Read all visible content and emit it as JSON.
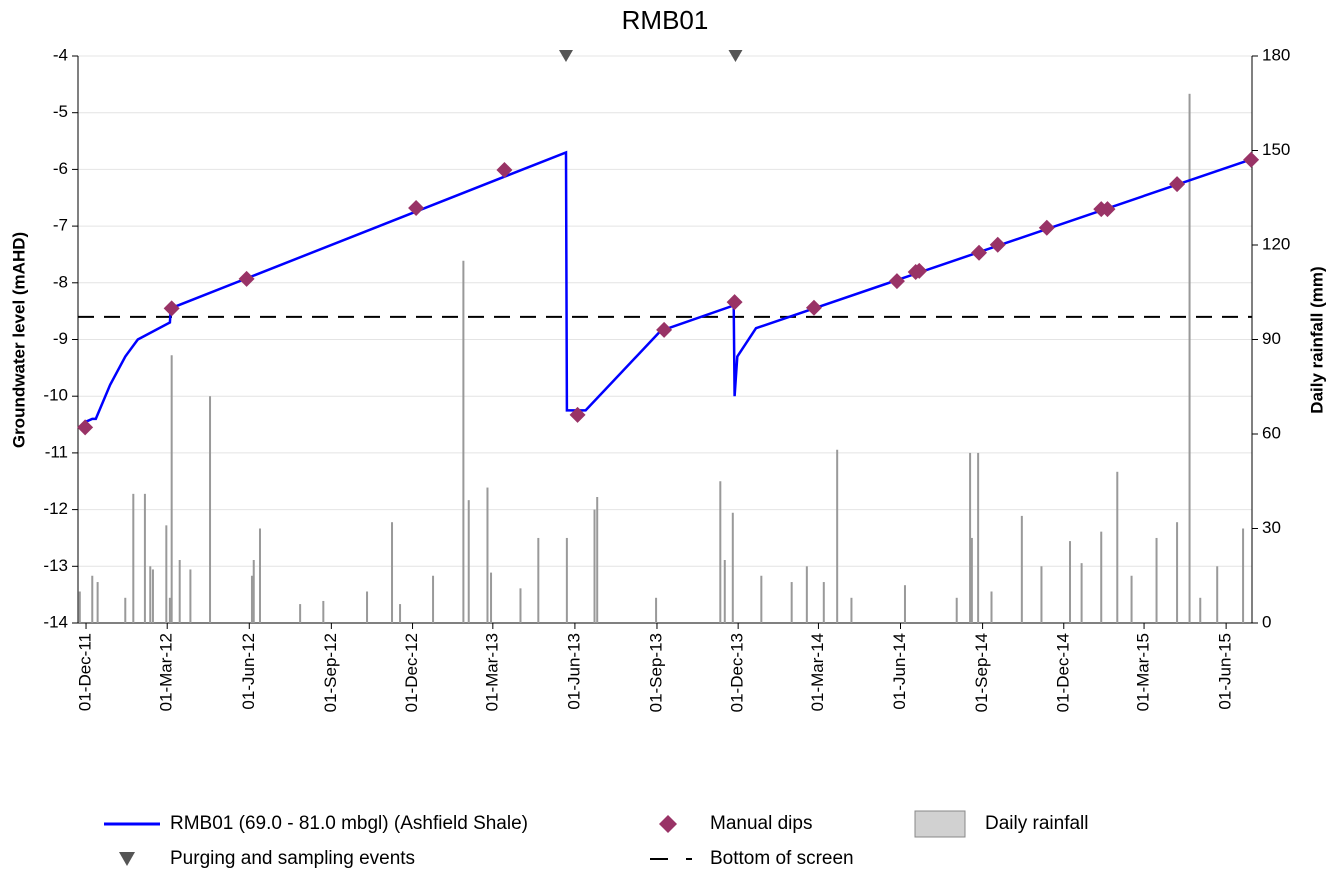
{
  "chart_data": {
    "type": "line",
    "title": "RMB01",
    "y_label": "Groundwater level (mAHD)",
    "y2_label": "Daily rainfall (mm)",
    "xlim": [
      "2011-11-22",
      "2015-06-30"
    ],
    "xticks": [
      {
        "value": "2011-12-01",
        "label": "01-Dec-11"
      },
      {
        "value": "2012-03-01",
        "label": "01-Mar-12"
      },
      {
        "value": "2012-06-01",
        "label": "01-Jun-12"
      },
      {
        "value": "2012-09-01",
        "label": "01-Sep-12"
      },
      {
        "value": "2012-12-01",
        "label": "01-Dec-12"
      },
      {
        "value": "2013-03-01",
        "label": "01-Mar-13"
      },
      {
        "value": "2013-06-01",
        "label": "01-Jun-13"
      },
      {
        "value": "2013-09-01",
        "label": "01-Sep-13"
      },
      {
        "value": "2013-12-01",
        "label": "01-Dec-13"
      },
      {
        "value": "2014-03-01",
        "label": "01-Mar-14"
      },
      {
        "value": "2014-06-01",
        "label": "01-Jun-14"
      },
      {
        "value": "2014-09-01",
        "label": "01-Sep-14"
      },
      {
        "value": "2014-12-01",
        "label": "01-Dec-14"
      },
      {
        "value": "2015-03-01",
        "label": "01-Mar-15"
      },
      {
        "value": "2015-06-01",
        "label": "01-Jun-15"
      }
    ],
    "ylim": [
      -14,
      -4
    ],
    "yticks": [
      -14,
      -13,
      -12,
      -11,
      -10,
      -9,
      -8,
      -7,
      -6,
      -5,
      -4
    ],
    "y2lim": [
      0,
      180
    ],
    "y2ticks": [
      0,
      30,
      60,
      90,
      120,
      150,
      180
    ],
    "grid": true,
    "series": [
      {
        "name": "Daily rainfall",
        "type": "bar",
        "axis": "y2",
        "color": "#999999",
        "x": [
          "2011-11-24",
          "2011-12-08",
          "2011-12-14",
          "2012-01-14",
          "2012-01-23",
          "2012-02-05",
          "2012-02-11",
          "2012-02-14",
          "2012-02-29",
          "2012-03-04",
          "2012-03-06",
          "2012-03-15",
          "2012-03-27",
          "2012-04-18",
          "2012-06-04",
          "2012-06-06",
          "2012-06-13",
          "2012-07-28",
          "2012-08-23",
          "2012-10-11",
          "2012-11-08",
          "2012-11-17",
          "2012-12-24",
          "2013-01-27",
          "2013-02-02",
          "2013-02-23",
          "2013-02-27",
          "2013-04-01",
          "2013-04-21",
          "2013-05-23",
          "2013-06-23",
          "2013-06-26",
          "2013-08-31",
          "2013-11-11",
          "2013-11-16",
          "2013-11-25",
          "2013-12-27",
          "2014-01-30",
          "2014-02-16",
          "2014-03-07",
          "2014-03-22",
          "2014-04-07",
          "2014-06-06",
          "2014-08-03",
          "2014-08-18",
          "2014-08-20",
          "2014-08-27",
          "2014-09-11",
          "2014-10-15",
          "2014-11-06",
          "2014-12-08",
          "2014-12-21",
          "2015-01-12",
          "2015-01-30",
          "2015-02-15",
          "2015-03-15",
          "2015-04-07",
          "2015-04-21",
          "2015-05-03",
          "2015-05-22",
          "2015-06-20"
        ],
        "values": [
          10,
          15,
          13,
          8,
          41,
          41,
          18,
          17,
          31,
          8,
          85,
          20,
          17,
          72,
          15,
          20,
          30,
          6,
          7,
          10,
          32,
          6,
          15,
          115,
          39,
          43,
          16,
          11,
          27,
          27,
          36,
          40,
          8,
          45,
          20,
          35,
          15,
          13,
          18,
          13,
          55,
          8,
          12,
          8,
          54,
          27,
          54,
          10,
          34,
          18,
          26,
          19,
          29,
          48,
          15,
          27,
          32,
          168,
          8,
          18,
          30
        ]
      },
      {
        "name": "RMB01 (69.0 - 81.0 mbgl) (Ashfield Shale)",
        "type": "line",
        "color": "#0000ff",
        "x": [
          "2011-12-01",
          "2011-12-08",
          "2011-12-12",
          "2011-12-28",
          "2012-01-14",
          "2012-01-28",
          "2012-03-04",
          "2012-03-05",
          "2013-05-22",
          "2013-05-23",
          "2013-06-13",
          "2013-09-05",
          "2013-11-26",
          "2013-11-27",
          "2013-11-30",
          "2013-12-21",
          "2015-06-24"
        ],
        "values": [
          -10.45,
          -10.4,
          -10.4,
          -9.8,
          -9.3,
          -9.0,
          -8.7,
          -8.45,
          -5.7,
          -10.25,
          -10.25,
          -8.85,
          -8.4,
          -10.0,
          -9.3,
          -8.8,
          -5.85
        ]
      },
      {
        "name": "Manual dips",
        "type": "scatter",
        "color": "#993366",
        "x": [
          "2011-11-30",
          "2012-03-06",
          "2012-05-29",
          "2012-12-05",
          "2013-03-14",
          "2013-06-04",
          "2013-09-09",
          "2013-11-27",
          "2014-02-24",
          "2014-05-28",
          "2014-06-18",
          "2014-06-22",
          "2014-08-28",
          "2014-09-18",
          "2014-11-12",
          "2015-01-12",
          "2015-01-19",
          "2015-04-07",
          "2015-06-29"
        ],
        "values": [
          -10.55,
          -8.45,
          -7.93,
          -6.68,
          -6.01,
          -10.33,
          -8.83,
          -8.34,
          -8.44,
          -7.97,
          -7.81,
          -7.79,
          -7.47,
          -7.33,
          -7.03,
          -6.7,
          -6.7,
          -6.26,
          -5.83
        ]
      }
    ],
    "events": {
      "name": "Purging and sampling events",
      "color": "#555555",
      "x": [
        "2013-05-22",
        "2013-11-28"
      ]
    },
    "reference_line": {
      "name": "Bottom of screen",
      "value": -8.6,
      "color": "#000000"
    }
  }
}
